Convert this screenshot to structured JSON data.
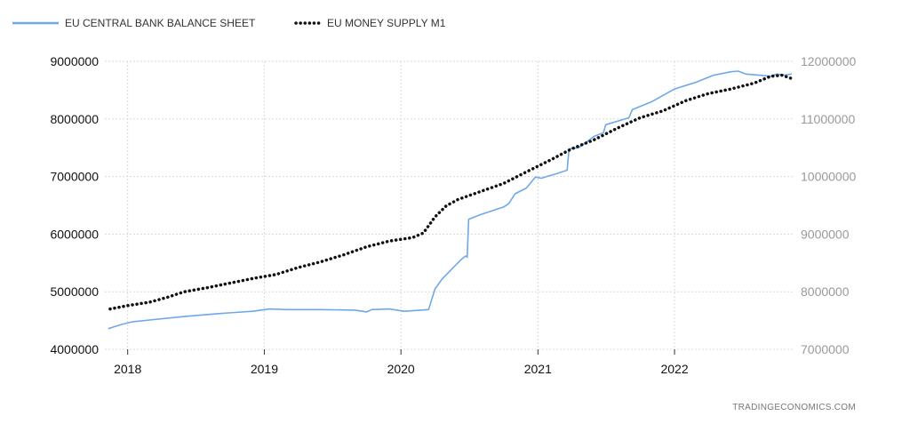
{
  "source_label": "TRADINGECONOMICS.COM",
  "colors": {
    "balance_sheet": "#6fa8e8",
    "m1": "#111111",
    "grid": "#d8d8d8",
    "right_axis_text": "#9a9a9a"
  },
  "chart_data": {
    "type": "line",
    "title": "",
    "xlabel": "",
    "ylabel": "",
    "legend_position": "top-left",
    "grid": true,
    "x_range": [
      "2017-11-01",
      "2022-11-15"
    ],
    "x_ticks": [
      "2018",
      "2019",
      "2020",
      "2021",
      "2022"
    ],
    "y_left": {
      "range": [
        4000000,
        9000000
      ],
      "ticks": [
        "4000000",
        "5000000",
        "6000000",
        "7000000",
        "8000000",
        "9000000"
      ]
    },
    "y_right": {
      "range": [
        7000000,
        12000000
      ],
      "ticks": [
        "7000000",
        "8000000",
        "9000000",
        "10000000",
        "11000000",
        "12000000"
      ]
    },
    "series": [
      {
        "name": "EU CENTRAL BANK BALANCE SHEET",
        "axis": "left",
        "style": "solid",
        "color": "#6fa8e8",
        "points": [
          [
            "2017-11-10",
            4360000
          ],
          [
            "2017-12-20",
            4440000
          ],
          [
            "2018-01-15",
            4480000
          ],
          [
            "2018-03-01",
            4510000
          ],
          [
            "2018-06-01",
            4570000
          ],
          [
            "2018-09-01",
            4620000
          ],
          [
            "2018-10-15",
            4640000
          ],
          [
            "2018-12-01",
            4660000
          ],
          [
            "2019-01-15",
            4700000
          ],
          [
            "2019-03-01",
            4690000
          ],
          [
            "2019-06-01",
            4690000
          ],
          [
            "2019-09-01",
            4680000
          ],
          [
            "2019-10-01",
            4650000
          ],
          [
            "2019-10-15",
            4690000
          ],
          [
            "2019-12-01",
            4700000
          ],
          [
            "2020-01-10",
            4660000
          ],
          [
            "2020-03-15",
            4690000
          ],
          [
            "2020-04-01",
            5050000
          ],
          [
            "2020-04-20",
            5220000
          ],
          [
            "2020-05-20",
            5420000
          ],
          [
            "2020-06-10",
            5560000
          ],
          [
            "2020-06-22",
            5620000
          ],
          [
            "2020-06-26",
            5600000
          ],
          [
            "2020-06-30",
            6260000
          ],
          [
            "2020-08-01",
            6340000
          ],
          [
            "2020-10-01",
            6470000
          ],
          [
            "2020-10-15",
            6530000
          ],
          [
            "2020-11-01",
            6700000
          ],
          [
            "2020-12-01",
            6800000
          ],
          [
            "2020-12-25",
            6990000
          ],
          [
            "2021-01-10",
            6970000
          ],
          [
            "2021-02-15",
            7040000
          ],
          [
            "2021-03-20",
            7110000
          ],
          [
            "2021-03-25",
            7480000
          ],
          [
            "2021-04-20",
            7500000
          ],
          [
            "2021-06-01",
            7700000
          ],
          [
            "2021-06-25",
            7760000
          ],
          [
            "2021-07-01",
            7900000
          ],
          [
            "2021-09-01",
            8020000
          ],
          [
            "2021-09-10",
            8160000
          ],
          [
            "2021-11-01",
            8300000
          ],
          [
            "2022-01-01",
            8520000
          ],
          [
            "2022-03-01",
            8640000
          ],
          [
            "2022-04-15",
            8760000
          ],
          [
            "2022-06-01",
            8820000
          ],
          [
            "2022-06-20",
            8830000
          ],
          [
            "2022-07-10",
            8780000
          ],
          [
            "2022-08-15",
            8760000
          ],
          [
            "2022-09-15",
            8740000
          ],
          [
            "2022-10-01",
            8780000
          ],
          [
            "2022-10-20",
            8760000
          ],
          [
            "2022-11-10",
            8780000
          ]
        ]
      },
      {
        "name": "EU MONEY SUPPLY M1",
        "axis": "right",
        "style": "dotted",
        "color": "#111111",
        "points": [
          [
            "2017-11-15",
            7700000
          ],
          [
            "2018-01-01",
            7760000
          ],
          [
            "2018-03-01",
            7820000
          ],
          [
            "2018-04-15",
            7900000
          ],
          [
            "2018-06-01",
            8000000
          ],
          [
            "2018-08-01",
            8070000
          ],
          [
            "2018-10-01",
            8150000
          ],
          [
            "2018-12-01",
            8230000
          ],
          [
            "2019-02-01",
            8300000
          ],
          [
            "2019-04-01",
            8420000
          ],
          [
            "2019-06-01",
            8520000
          ],
          [
            "2019-08-01",
            8640000
          ],
          [
            "2019-10-01",
            8780000
          ],
          [
            "2019-12-01",
            8880000
          ],
          [
            "2020-02-01",
            8940000
          ],
          [
            "2020-03-01",
            9020000
          ],
          [
            "2020-04-01",
            9300000
          ],
          [
            "2020-05-01",
            9490000
          ],
          [
            "2020-06-01",
            9600000
          ],
          [
            "2020-08-01",
            9740000
          ],
          [
            "2020-10-01",
            9880000
          ],
          [
            "2020-12-01",
            10080000
          ],
          [
            "2021-02-01",
            10280000
          ],
          [
            "2021-04-01",
            10480000
          ],
          [
            "2021-06-01",
            10640000
          ],
          [
            "2021-08-01",
            10840000
          ],
          [
            "2021-10-01",
            11020000
          ],
          [
            "2021-12-01",
            11140000
          ],
          [
            "2022-02-01",
            11320000
          ],
          [
            "2022-04-01",
            11440000
          ],
          [
            "2022-06-01",
            11520000
          ],
          [
            "2022-08-01",
            11620000
          ],
          [
            "2022-09-15",
            11740000
          ],
          [
            "2022-10-15",
            11760000
          ],
          [
            "2022-11-10",
            11700000
          ]
        ]
      }
    ]
  }
}
